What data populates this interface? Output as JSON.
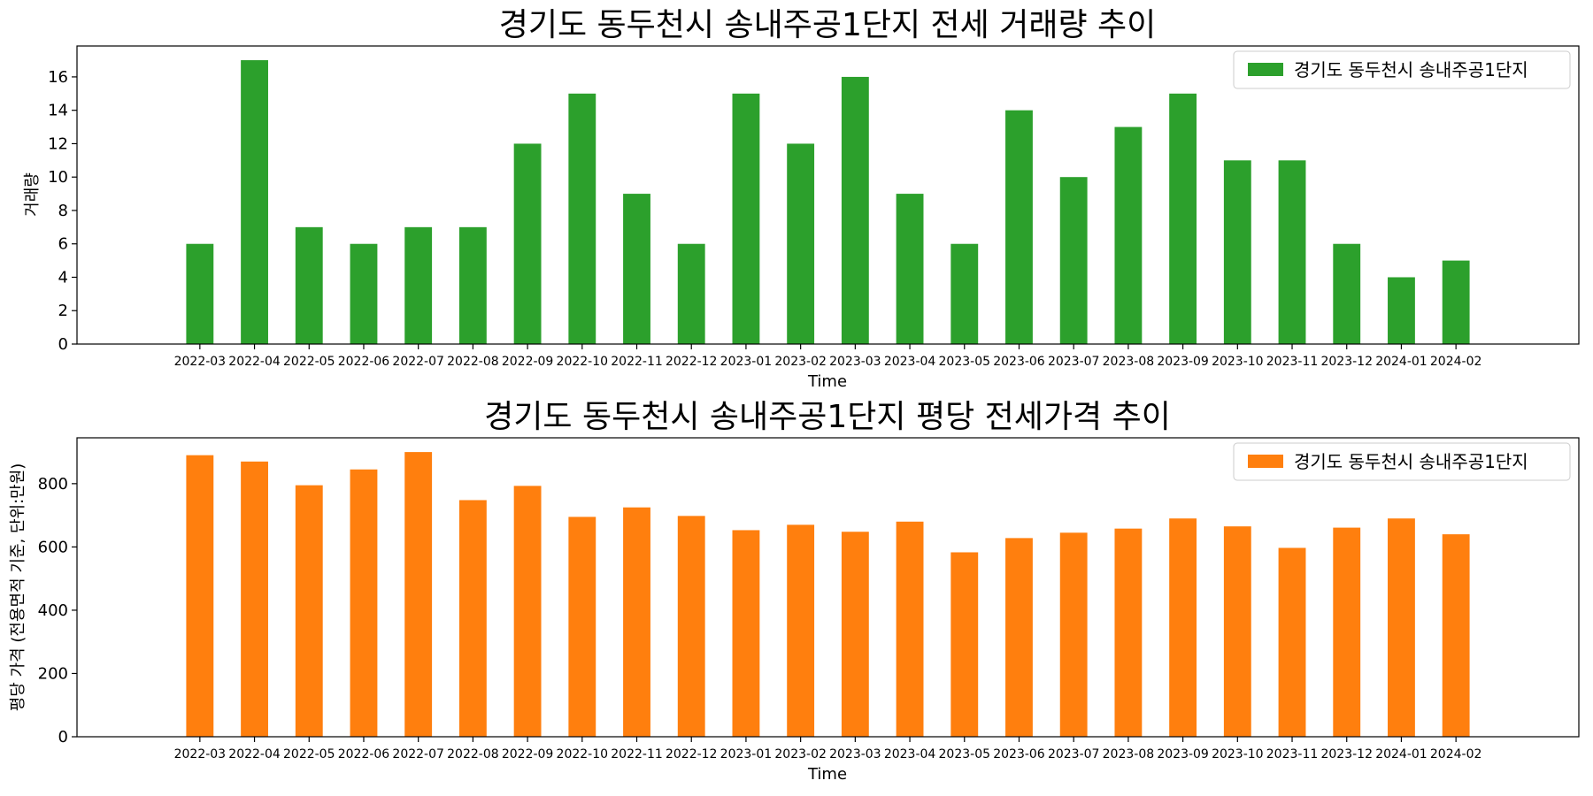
{
  "chart_data": [
    {
      "type": "bar",
      "title": "경기도 동두천시 송내주공1단지 전세 거래량 추이",
      "xlabel": "Time",
      "ylabel": "거래량",
      "ylim": [
        0,
        17.85
      ],
      "yticks": [
        0,
        2,
        4,
        6,
        8,
        10,
        12,
        14,
        16
      ],
      "color": "#2ca02c",
      "legend_position": "top-right",
      "categories": [
        "2022-03",
        "2022-04",
        "2022-05",
        "2022-06",
        "2022-07",
        "2022-08",
        "2022-09",
        "2022-10",
        "2022-11",
        "2022-12",
        "2023-01",
        "2023-02",
        "2023-03",
        "2023-04",
        "2023-05",
        "2023-06",
        "2023-07",
        "2023-08",
        "2023-09",
        "2023-10",
        "2023-11",
        "2023-12",
        "2024-01",
        "2024-02"
      ],
      "series": [
        {
          "name": "경기도 동두천시 송내주공1단지",
          "values": [
            6,
            17,
            7,
            6,
            7,
            7,
            12,
            15,
            9,
            6,
            15,
            12,
            16,
            9,
            6,
            14,
            10,
            13,
            15,
            11,
            11,
            6,
            4,
            5
          ]
        }
      ]
    },
    {
      "type": "bar",
      "title": "경기도 동두천시 송내주공1단지 평당 전세가격 추이",
      "xlabel": "Time",
      "ylabel": "평당 가격 (전용면적 기준, 단위:만원)",
      "ylim": [
        0,
        945
      ],
      "yticks": [
        0,
        200,
        400,
        600,
        800
      ],
      "color": "#ff7f0e",
      "legend_position": "top-right",
      "categories": [
        "2022-03",
        "2022-04",
        "2022-05",
        "2022-06",
        "2022-07",
        "2022-08",
        "2022-09",
        "2022-10",
        "2022-11",
        "2022-12",
        "2023-01",
        "2023-02",
        "2023-03",
        "2023-04",
        "2023-05",
        "2023-06",
        "2023-07",
        "2023-08",
        "2023-09",
        "2023-10",
        "2023-11",
        "2023-12",
        "2024-01",
        "2024-02"
      ],
      "series": [
        {
          "name": "경기도 동두천시 송내주공1단지",
          "values": [
            890,
            870,
            795,
            845,
            900,
            748,
            793,
            695,
            725,
            698,
            653,
            670,
            648,
            680,
            583,
            628,
            645,
            658,
            690,
            665,
            597,
            661,
            690,
            640
          ]
        }
      ]
    }
  ]
}
